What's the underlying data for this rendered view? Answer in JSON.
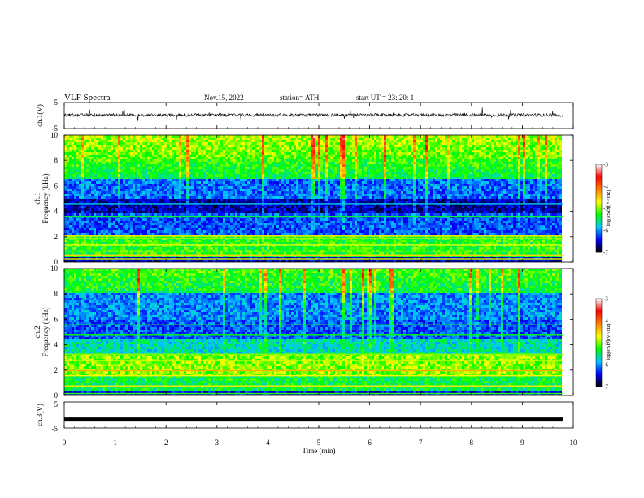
{
  "header": {
    "title": "VLF  Spectra",
    "date": "Nov.15, 2022",
    "station": "station= ATH",
    "start": "start  UT  =    23: 20: 1"
  },
  "chart_data": [
    {
      "id": "ch1-waveform",
      "type": "line",
      "ylabel": "ch.1(V)",
      "ylim": [
        -5,
        5
      ],
      "yticks": [
        "5",
        "-5"
      ],
      "x_range_min": [
        0,
        9.8
      ],
      "level": 0.2,
      "color": "#000000"
    },
    {
      "id": "ch1-spectrogram",
      "type": "heatmap",
      "ylabel": "Frequency (kHz)",
      "channel_label": "ch.1",
      "ylim": [
        0,
        10
      ],
      "yticks": [
        "0",
        "2",
        "4",
        "6",
        "8",
        "10"
      ],
      "colorbar": {
        "label": "log(PSD)(V²/Hz)",
        "range": [
          -7,
          -3
        ],
        "ticks": [
          "-3",
          "-4",
          "-5",
          "-6",
          "-7"
        ]
      }
    },
    {
      "id": "ch2-spectrogram",
      "type": "heatmap",
      "ylabel": "Frequency (kHz)",
      "channel_label": "ch.2",
      "ylim": [
        0,
        10
      ],
      "yticks": [
        "0",
        "2",
        "4",
        "6",
        "8",
        "10"
      ],
      "colorbar": {
        "label": "log(PSD)(V²/Hz)",
        "range": [
          -7,
          -3
        ],
        "ticks": [
          "-3",
          "-4",
          "-5",
          "-6",
          "-7"
        ]
      }
    },
    {
      "id": "ch3-waveform",
      "type": "line",
      "ylabel": "ch.3(V)",
      "ylim": [
        -5,
        5
      ],
      "yticks": [
        "5",
        "-5"
      ],
      "level": -1.6,
      "color": "#000000"
    }
  ],
  "x_axis": {
    "label": "Time  (min)",
    "xlim": [
      0,
      10
    ],
    "ticks": [
      "0",
      "1",
      "2",
      "3",
      "4",
      "5",
      "6",
      "7",
      "8",
      "9",
      "10"
    ]
  },
  "colors": {
    "colormap": [
      "#000000",
      "#0000ff",
      "#00c8ff",
      "#00ff00",
      "#ffff00",
      "#ff8000",
      "#ff0000",
      "#ffffff"
    ]
  }
}
